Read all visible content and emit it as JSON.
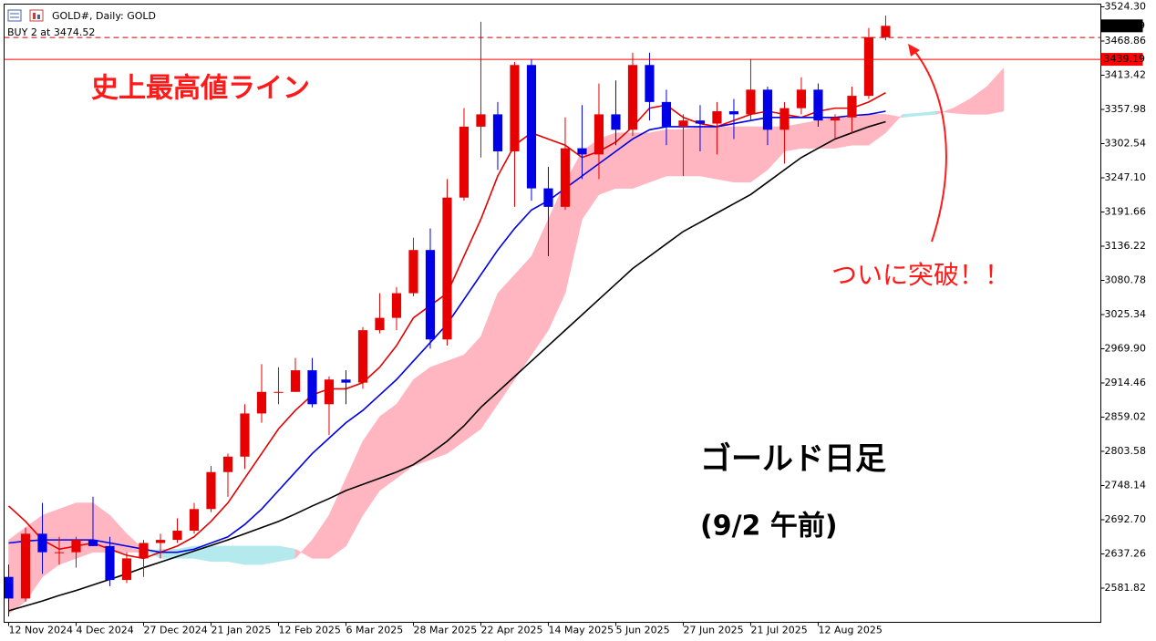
{
  "chart_data": {
    "type": "candlestick",
    "title": "GOLD#, Daily:  GOLD",
    "order_line": {
      "label": "BUY 2 at 3474.52",
      "value": 3474.52,
      "color": "#cc0000"
    },
    "current_price": 3493.49,
    "record_high": {
      "value": 3439.19,
      "color": "#ff0000"
    },
    "annotations": [
      "史上最高値ライン",
      "ついに突破！！",
      "ゴールド日足",
      "(9/2 午前)"
    ],
    "up_color": "#e60000",
    "down_color": "#0000e6",
    "open": [
      2600,
      2565,
      2670,
      2640,
      2640,
      2660,
      2650,
      2595,
      2630,
      2655,
      2660,
      2675,
      2710,
      2770,
      2795,
      2865,
      2900,
      2900,
      2935,
      2880,
      2920,
      2915,
      3000,
      3020,
      3060,
      3130,
      2985,
      3215,
      3330,
      3350,
      3290,
      3430,
      3230,
      3200,
      3295,
      3285,
      3350,
      3325,
      3430,
      3370,
      3330,
      3340,
      3335,
      3355,
      3350,
      3390,
      3325,
      3360,
      3390,
      3340,
      3345,
      3380,
      3475
    ],
    "high": [
      2620,
      2680,
      2720,
      2665,
      2665,
      2730,
      2665,
      2640,
      2660,
      2670,
      2695,
      2720,
      2780,
      2800,
      2880,
      2945,
      2940,
      2955,
      2955,
      2925,
      2935,
      3005,
      3060,
      3070,
      3150,
      3165,
      3245,
      3360,
      3500,
      3370,
      3435,
      3440,
      3265,
      3345,
      3365,
      3400,
      3405,
      3450,
      3450,
      3390,
      3350,
      3365,
      3370,
      3375,
      3440,
      3395,
      3370,
      3410,
      3400,
      3350,
      3395,
      3490,
      3510
    ],
    "low": [
      2536,
      2560,
      2605,
      2620,
      2615,
      2650,
      2585,
      2590,
      2600,
      2630,
      2655,
      2670,
      2705,
      2730,
      2775,
      2850,
      2880,
      2900,
      2875,
      2830,
      2880,
      2905,
      2995,
      3000,
      3055,
      2970,
      2975,
      3210,
      3280,
      3260,
      3200,
      3210,
      3120,
      3195,
      3245,
      3245,
      3300,
      3315,
      3340,
      3300,
      3250,
      3290,
      3285,
      3310,
      3340,
      3300,
      3270,
      3350,
      3330,
      3310,
      3320,
      3375,
      3470
    ],
    "close": [
      2565,
      2670,
      2640,
      2640,
      2660,
      2650,
      2595,
      2630,
      2655,
      2660,
      2675,
      2710,
      2770,
      2795,
      2865,
      2900,
      2900,
      2935,
      2880,
      2920,
      2915,
      3000,
      3020,
      3060,
      3130,
      2985,
      3215,
      3330,
      3350,
      3290,
      3430,
      3230,
      3200,
      3295,
      3285,
      3350,
      3325,
      3430,
      3370,
      3330,
      3340,
      3335,
      3355,
      3350,
      3390,
      3325,
      3360,
      3390,
      3340,
      3345,
      3380,
      3475,
      3493.49
    ],
    "lines": [
      {
        "color": "#e60000",
        "values": [
          2715,
          2690,
          2660,
          2645,
          2650,
          2655,
          2645,
          2635,
          2630,
          2640,
          2650,
          2665,
          2690,
          2720,
          2760,
          2800,
          2840,
          2870,
          2895,
          2905,
          2905,
          2915,
          2940,
          2975,
          3020,
          3040,
          3060,
          3120,
          3180,
          3250,
          3300,
          3320,
          3310,
          3300,
          3280,
          3290,
          3305,
          3330,
          3360,
          3365,
          3345,
          3335,
          3330,
          3340,
          3350,
          3355,
          3350,
          3345,
          3355,
          3360,
          3360,
          3370,
          3385
        ]
      },
      {
        "color": "#0000e6",
        "values": [
          2655,
          2658,
          2660,
          2660,
          2660,
          2660,
          2655,
          2650,
          2645,
          2640,
          2640,
          2645,
          2655,
          2665,
          2685,
          2710,
          2740,
          2770,
          2800,
          2825,
          2850,
          2870,
          2895,
          2920,
          2950,
          2980,
          3010,
          3050,
          3090,
          3130,
          3165,
          3195,
          3210,
          3230,
          3250,
          3270,
          3290,
          3310,
          3325,
          3330,
          3330,
          3330,
          3330,
          3335,
          3340,
          3345,
          3345,
          3345,
          3345,
          3345,
          3348,
          3350,
          3355
        ]
      },
      {
        "color": "#000000",
        "values": [
          2545,
          2553,
          2561,
          2570,
          2578,
          2587,
          2596,
          2605,
          2615,
          2624,
          2633,
          2642,
          2651,
          2660,
          2670,
          2680,
          2690,
          2702,
          2715,
          2727,
          2740,
          2750,
          2760,
          2770,
          2782,
          2800,
          2820,
          2845,
          2875,
          2900,
          2925,
          2950,
          2975,
          3000,
          3025,
          3050,
          3075,
          3100,
          3120,
          3140,
          3160,
          3175,
          3190,
          3205,
          3220,
          3240,
          3260,
          3280,
          3295,
          3310,
          3320,
          3330,
          3338
        ]
      }
    ],
    "cloud": {
      "up_color": "#ffb6c1",
      "down_color": "#b4e9ee",
      "span_a": [
        2660,
        2680,
        2700,
        2710,
        2720,
        2720,
        2700,
        2670,
        2645,
        2630,
        2630,
        2630,
        2625,
        2625,
        2620,
        2620,
        2625,
        2630,
        2660,
        2700,
        2760,
        2820,
        2860,
        2880,
        2920,
        2940,
        2950,
        2960,
        2990,
        3060,
        3090,
        3120,
        3180,
        3240,
        3290,
        3310,
        3320,
        3320,
        3320,
        3325,
        3325,
        3330,
        3330,
        3330,
        3330,
        3330,
        3330,
        3335,
        3340,
        3345,
        3345,
        3350,
        3350,
        3345,
        3348,
        3350,
        3360,
        3375,
        3395,
        3425
      ],
      "span_b": [
        2540,
        2560,
        2600,
        2620,
        2630,
        2640,
        2640,
        2640,
        2640,
        2645,
        2645,
        2650,
        2650,
        2650,
        2650,
        2650,
        2650,
        2645,
        2630,
        2630,
        2650,
        2700,
        2740,
        2760,
        2780,
        2790,
        2800,
        2820,
        2840,
        2880,
        2920,
        2960,
        3000,
        3060,
        3180,
        3220,
        3230,
        3230,
        3240,
        3250,
        3250,
        3250,
        3245,
        3240,
        3240,
        3260,
        3290,
        3295,
        3295,
        3295,
        3300,
        3300,
        3320,
        3350,
        3352,
        3355,
        3352,
        3350,
        3350,
        3355
      ]
    },
    "xlim": [
      -0.27,
      64.76
    ],
    "xticks": [
      {
        "value": 0,
        "label": "12 Nov 2024"
      },
      {
        "value": 4,
        "label": "4 Dec 2024"
      },
      {
        "value": 8,
        "label": "27 Dec 2024"
      },
      {
        "value": 12,
        "label": "21 Jan 2025"
      },
      {
        "value": 16,
        "label": "12 Feb 2025"
      },
      {
        "value": 20,
        "label": "6 Mar 2025"
      },
      {
        "value": 24,
        "label": "28 Mar 2025"
      },
      {
        "value": 28,
        "label": "22 Apr 2025"
      },
      {
        "value": 32,
        "label": "14 May 2025"
      },
      {
        "value": 36,
        "label": "5 Jun 2025"
      },
      {
        "value": 40,
        "label": "27 Jun 2025"
      },
      {
        "value": 44,
        "label": "21 Jul 2025"
      },
      {
        "value": 48,
        "label": "12 Aug 2025"
      }
    ],
    "ylim": [
      2526.38,
      3528.73
    ],
    "yticks": [
      {
        "value": 3524.3,
        "label": "3524.30"
      },
      3468.86,
      3413.42,
      3357.98,
      3302.54,
      {
        "value": 3247.1,
        "label": "3247.10"
      },
      3191.66,
      3136.22,
      3080.78,
      3025.34,
      {
        "value": 2969.9,
        "label": "2969.90"
      },
      2914.46,
      2859.02,
      2803.58,
      2748.14,
      {
        "value": 2692.7,
        "label": "2692.70"
      },
      2637.26,
      2581.82
    ]
  }
}
